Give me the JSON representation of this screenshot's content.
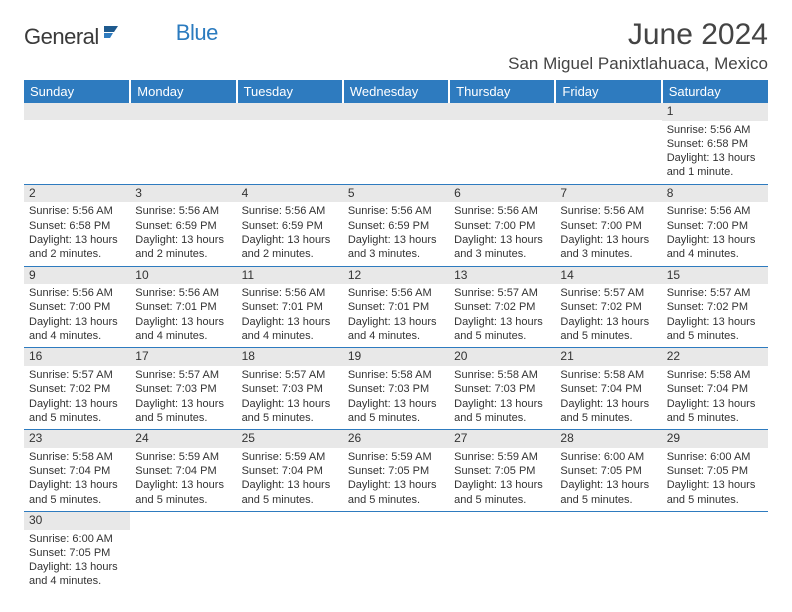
{
  "brand": {
    "part1": "General",
    "part2": "Blue",
    "part1_color": "#3a3a3a",
    "part2_color": "#2b7bbf"
  },
  "title": "June 2024",
  "location": "San Miguel Panixtlahuaca, Mexico",
  "colors": {
    "header_bg": "#2e7bbf",
    "header_text": "#ffffff",
    "daynum_bg": "#e8e8e8",
    "rule": "#2e7bbf",
    "body_text": "#333333"
  },
  "fonts": {
    "title_size": 30,
    "location_size": 17,
    "dayhdr_size": 13,
    "daynum_size": 12,
    "body_size": 11
  },
  "day_headers": [
    "Sunday",
    "Monday",
    "Tuesday",
    "Wednesday",
    "Thursday",
    "Friday",
    "Saturday"
  ],
  "weeks": [
    [
      {
        "blank": true
      },
      {
        "blank": true
      },
      {
        "blank": true
      },
      {
        "blank": true
      },
      {
        "blank": true
      },
      {
        "blank": true
      },
      {
        "n": "1",
        "sunrise": "Sunrise: 5:56 AM",
        "sunset": "Sunset: 6:58 PM",
        "daylight": "Daylight: 13 hours and 1 minute."
      }
    ],
    [
      {
        "n": "2",
        "sunrise": "Sunrise: 5:56 AM",
        "sunset": "Sunset: 6:58 PM",
        "daylight": "Daylight: 13 hours and 2 minutes."
      },
      {
        "n": "3",
        "sunrise": "Sunrise: 5:56 AM",
        "sunset": "Sunset: 6:59 PM",
        "daylight": "Daylight: 13 hours and 2 minutes."
      },
      {
        "n": "4",
        "sunrise": "Sunrise: 5:56 AM",
        "sunset": "Sunset: 6:59 PM",
        "daylight": "Daylight: 13 hours and 2 minutes."
      },
      {
        "n": "5",
        "sunrise": "Sunrise: 5:56 AM",
        "sunset": "Sunset: 6:59 PM",
        "daylight": "Daylight: 13 hours and 3 minutes."
      },
      {
        "n": "6",
        "sunrise": "Sunrise: 5:56 AM",
        "sunset": "Sunset: 7:00 PM",
        "daylight": "Daylight: 13 hours and 3 minutes."
      },
      {
        "n": "7",
        "sunrise": "Sunrise: 5:56 AM",
        "sunset": "Sunset: 7:00 PM",
        "daylight": "Daylight: 13 hours and 3 minutes."
      },
      {
        "n": "8",
        "sunrise": "Sunrise: 5:56 AM",
        "sunset": "Sunset: 7:00 PM",
        "daylight": "Daylight: 13 hours and 4 minutes."
      }
    ],
    [
      {
        "n": "9",
        "sunrise": "Sunrise: 5:56 AM",
        "sunset": "Sunset: 7:00 PM",
        "daylight": "Daylight: 13 hours and 4 minutes."
      },
      {
        "n": "10",
        "sunrise": "Sunrise: 5:56 AM",
        "sunset": "Sunset: 7:01 PM",
        "daylight": "Daylight: 13 hours and 4 minutes."
      },
      {
        "n": "11",
        "sunrise": "Sunrise: 5:56 AM",
        "sunset": "Sunset: 7:01 PM",
        "daylight": "Daylight: 13 hours and 4 minutes."
      },
      {
        "n": "12",
        "sunrise": "Sunrise: 5:56 AM",
        "sunset": "Sunset: 7:01 PM",
        "daylight": "Daylight: 13 hours and 4 minutes."
      },
      {
        "n": "13",
        "sunrise": "Sunrise: 5:57 AM",
        "sunset": "Sunset: 7:02 PM",
        "daylight": "Daylight: 13 hours and 5 minutes."
      },
      {
        "n": "14",
        "sunrise": "Sunrise: 5:57 AM",
        "sunset": "Sunset: 7:02 PM",
        "daylight": "Daylight: 13 hours and 5 minutes."
      },
      {
        "n": "15",
        "sunrise": "Sunrise: 5:57 AM",
        "sunset": "Sunset: 7:02 PM",
        "daylight": "Daylight: 13 hours and 5 minutes."
      }
    ],
    [
      {
        "n": "16",
        "sunrise": "Sunrise: 5:57 AM",
        "sunset": "Sunset: 7:02 PM",
        "daylight": "Daylight: 13 hours and 5 minutes."
      },
      {
        "n": "17",
        "sunrise": "Sunrise: 5:57 AM",
        "sunset": "Sunset: 7:03 PM",
        "daylight": "Daylight: 13 hours and 5 minutes."
      },
      {
        "n": "18",
        "sunrise": "Sunrise: 5:57 AM",
        "sunset": "Sunset: 7:03 PM",
        "daylight": "Daylight: 13 hours and 5 minutes."
      },
      {
        "n": "19",
        "sunrise": "Sunrise: 5:58 AM",
        "sunset": "Sunset: 7:03 PM",
        "daylight": "Daylight: 13 hours and 5 minutes."
      },
      {
        "n": "20",
        "sunrise": "Sunrise: 5:58 AM",
        "sunset": "Sunset: 7:03 PM",
        "daylight": "Daylight: 13 hours and 5 minutes."
      },
      {
        "n": "21",
        "sunrise": "Sunrise: 5:58 AM",
        "sunset": "Sunset: 7:04 PM",
        "daylight": "Daylight: 13 hours and 5 minutes."
      },
      {
        "n": "22",
        "sunrise": "Sunrise: 5:58 AM",
        "sunset": "Sunset: 7:04 PM",
        "daylight": "Daylight: 13 hours and 5 minutes."
      }
    ],
    [
      {
        "n": "23",
        "sunrise": "Sunrise: 5:58 AM",
        "sunset": "Sunset: 7:04 PM",
        "daylight": "Daylight: 13 hours and 5 minutes."
      },
      {
        "n": "24",
        "sunrise": "Sunrise: 5:59 AM",
        "sunset": "Sunset: 7:04 PM",
        "daylight": "Daylight: 13 hours and 5 minutes."
      },
      {
        "n": "25",
        "sunrise": "Sunrise: 5:59 AM",
        "sunset": "Sunset: 7:04 PM",
        "daylight": "Daylight: 13 hours and 5 minutes."
      },
      {
        "n": "26",
        "sunrise": "Sunrise: 5:59 AM",
        "sunset": "Sunset: 7:05 PM",
        "daylight": "Daylight: 13 hours and 5 minutes."
      },
      {
        "n": "27",
        "sunrise": "Sunrise: 5:59 AM",
        "sunset": "Sunset: 7:05 PM",
        "daylight": "Daylight: 13 hours and 5 minutes."
      },
      {
        "n": "28",
        "sunrise": "Sunrise: 6:00 AM",
        "sunset": "Sunset: 7:05 PM",
        "daylight": "Daylight: 13 hours and 5 minutes."
      },
      {
        "n": "29",
        "sunrise": "Sunrise: 6:00 AM",
        "sunset": "Sunset: 7:05 PM",
        "daylight": "Daylight: 13 hours and 5 minutes."
      }
    ],
    [
      {
        "n": "30",
        "sunrise": "Sunrise: 6:00 AM",
        "sunset": "Sunset: 7:05 PM",
        "daylight": "Daylight: 13 hours and 4 minutes."
      },
      {
        "blank": true
      },
      {
        "blank": true
      },
      {
        "blank": true
      },
      {
        "blank": true
      },
      {
        "blank": true
      },
      {
        "blank": true
      }
    ]
  ]
}
